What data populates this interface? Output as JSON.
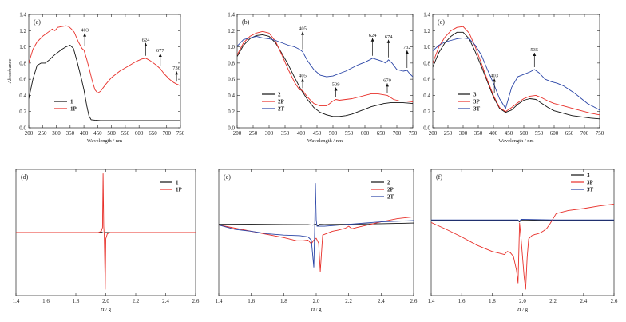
{
  "chart_data": [
    {
      "panel": "(a)",
      "type": "line",
      "xlabel": "Wavelength / nm",
      "ylabel": "Absorbance",
      "xlim": [
        200,
        750
      ],
      "ylim": [
        0.0,
        1.4
      ],
      "xticks": [
        200,
        250,
        300,
        350,
        400,
        450,
        500,
        550,
        600,
        650,
        700,
        750
      ],
      "yticks": [
        0.0,
        0.2,
        0.4,
        0.6,
        0.8,
        1.0,
        1.2,
        1.4
      ],
      "legend": "bottom-left",
      "series": [
        {
          "name": "1",
          "color": "#111111",
          "x": [
            200,
            215,
            230,
            245,
            260,
            275,
            290,
            305,
            320,
            335,
            350,
            362,
            375,
            390,
            400,
            410,
            418,
            426,
            440,
            460,
            500,
            550,
            600,
            650,
            700,
            750
          ],
          "y": [
            0.36,
            0.6,
            0.77,
            0.8,
            0.8,
            0.84,
            0.89,
            0.93,
            0.97,
            1.0,
            1.02,
            0.98,
            0.82,
            0.62,
            0.47,
            0.28,
            0.15,
            0.1,
            0.095,
            0.09,
            0.09,
            0.09,
            0.09,
            0.09,
            0.09,
            0.09
          ]
        },
        {
          "name": "1P",
          "color": "#e8302a",
          "x": [
            200,
            215,
            230,
            250,
            270,
            285,
            295,
            305,
            320,
            335,
            345,
            355,
            365,
            380,
            393,
            400,
            410,
            420,
            430,
            440,
            450,
            460,
            480,
            500,
            530,
            560,
            590,
            610,
            624,
            640,
            660,
            677,
            690,
            710,
            725,
            736,
            750
          ],
          "y": [
            0.8,
            0.97,
            1.06,
            1.13,
            1.18,
            1.22,
            1.2,
            1.24,
            1.25,
            1.26,
            1.25,
            1.22,
            1.18,
            1.06,
            0.98,
            0.96,
            0.85,
            0.72,
            0.58,
            0.47,
            0.43,
            0.45,
            0.54,
            0.62,
            0.7,
            0.76,
            0.82,
            0.85,
            0.86,
            0.83,
            0.78,
            0.73,
            0.67,
            0.6,
            0.56,
            0.54,
            0.52
          ]
        }
      ],
      "annotations": [
        {
          "label": "403",
          "x": 403,
          "y": 0.98,
          "series": "1P"
        },
        {
          "label": "624",
          "x": 624,
          "y": 0.86,
          "series": "1P"
        },
        {
          "label": "677",
          "x": 677,
          "y": 0.73,
          "series": "1P"
        },
        {
          "label": "736",
          "x": 736,
          "y": 0.54,
          "series": "1P"
        }
      ]
    },
    {
      "panel": "(b)",
      "type": "line",
      "xlabel": "Wavelength / nm",
      "ylabel": "",
      "xlim": [
        200,
        750
      ],
      "ylim": [
        0.0,
        1.4
      ],
      "xticks": [
        200,
        250,
        300,
        350,
        400,
        450,
        500,
        550,
        600,
        650,
        700,
        750
      ],
      "yticks": [
        0.0,
        0.2,
        0.4,
        0.6,
        0.8,
        1.0,
        1.2,
        1.4
      ],
      "legend": "bottom-left",
      "series": [
        {
          "name": "2",
          "color": "#111111",
          "x": [
            200,
            220,
            240,
            260,
            280,
            300,
            320,
            340,
            360,
            380,
            400,
            420,
            440,
            460,
            480,
            500,
            520,
            540,
            560,
            580,
            600,
            620,
            640,
            660,
            680,
            700,
            720,
            750
          ],
          "y": [
            0.88,
            1.02,
            1.1,
            1.14,
            1.15,
            1.13,
            1.05,
            0.92,
            0.78,
            0.62,
            0.47,
            0.35,
            0.25,
            0.19,
            0.16,
            0.14,
            0.14,
            0.15,
            0.17,
            0.2,
            0.23,
            0.26,
            0.28,
            0.3,
            0.31,
            0.31,
            0.31,
            0.3
          ]
        },
        {
          "name": "2P",
          "color": "#e8302a",
          "x": [
            200,
            220,
            240,
            260,
            280,
            300,
            320,
            340,
            360,
            380,
            395,
            405,
            420,
            440,
            460,
            480,
            500,
            509,
            520,
            540,
            560,
            580,
            600,
            620,
            640,
            655,
            670,
            690,
            710,
            730,
            750
          ],
          "y": [
            0.9,
            1.05,
            1.13,
            1.17,
            1.19,
            1.17,
            1.07,
            0.9,
            0.72,
            0.56,
            0.47,
            0.46,
            0.38,
            0.3,
            0.27,
            0.27,
            0.33,
            0.35,
            0.34,
            0.35,
            0.36,
            0.38,
            0.4,
            0.42,
            0.42,
            0.41,
            0.4,
            0.35,
            0.33,
            0.33,
            0.32
          ]
        },
        {
          "name": "2T",
          "color": "#2944a6",
          "x": [
            200,
            220,
            240,
            260,
            280,
            300,
            320,
            340,
            360,
            380,
            395,
            405,
            420,
            440,
            460,
            480,
            500,
            520,
            540,
            560,
            580,
            600,
            615,
            624,
            640,
            655,
            665,
            674,
            685,
            700,
            720,
            732,
            740,
            750
          ],
          "y": [
            1.01,
            1.09,
            1.11,
            1.13,
            1.11,
            1.1,
            1.08,
            1.05,
            1.02,
            1.0,
            0.97,
            0.94,
            0.83,
            0.72,
            0.65,
            0.63,
            0.64,
            0.67,
            0.7,
            0.74,
            0.78,
            0.81,
            0.84,
            0.86,
            0.84,
            0.82,
            0.8,
            0.84,
            0.8,
            0.72,
            0.7,
            0.71,
            0.67,
            0.63
          ]
        }
      ],
      "annotations": [
        {
          "label": "405",
          "x": 405,
          "y": 0.94,
          "series": "2T"
        },
        {
          "label": "624",
          "x": 624,
          "y": 0.86,
          "series": "2T"
        },
        {
          "label": "674",
          "x": 674,
          "y": 0.84,
          "series": "2T"
        },
        {
          "label": "732",
          "x": 732,
          "y": 0.71,
          "series": "2T"
        },
        {
          "label": "405",
          "x": 405,
          "y": 0.46,
          "series": "2P"
        },
        {
          "label": "509",
          "x": 509,
          "y": 0.35,
          "series": "2P"
        },
        {
          "label": "670",
          "x": 670,
          "y": 0.4,
          "series": "2P"
        }
      ]
    },
    {
      "panel": "(c)",
      "type": "line",
      "xlabel": "Wavelength / nm",
      "ylabel": "",
      "xlim": [
        200,
        750
      ],
      "ylim": [
        0.0,
        1.4
      ],
      "xticks": [
        200,
        250,
        300,
        350,
        400,
        450,
        500,
        550,
        600,
        650,
        700,
        750
      ],
      "yticks": [
        0.0,
        0.2,
        0.4,
        0.6,
        0.8,
        1.0,
        1.2,
        1.4
      ],
      "legend": "bottom-left",
      "series": [
        {
          "name": "3",
          "color": "#111111",
          "x": [
            200,
            220,
            240,
            260,
            280,
            300,
            320,
            340,
            360,
            380,
            400,
            420,
            440,
            460,
            480,
            500,
            520,
            540,
            560,
            580,
            600,
            620,
            640,
            660,
            680,
            700,
            720,
            750
          ],
          "y": [
            0.75,
            0.93,
            1.05,
            1.13,
            1.18,
            1.18,
            1.1,
            0.94,
            0.76,
            0.57,
            0.38,
            0.24,
            0.19,
            0.22,
            0.29,
            0.34,
            0.36,
            0.35,
            0.3,
            0.25,
            0.21,
            0.19,
            0.17,
            0.15,
            0.14,
            0.13,
            0.12,
            0.11
          ]
        },
        {
          "name": "3P",
          "color": "#e8302a",
          "x": [
            200,
            220,
            240,
            260,
            280,
            300,
            320,
            340,
            360,
            380,
            400,
            420,
            440,
            460,
            480,
            500,
            520,
            540,
            560,
            580,
            600,
            620,
            640,
            660,
            680,
            700,
            720,
            750
          ],
          "y": [
            0.8,
            1.0,
            1.12,
            1.2,
            1.24,
            1.25,
            1.17,
            1.0,
            0.8,
            0.59,
            0.4,
            0.25,
            0.2,
            0.25,
            0.31,
            0.36,
            0.39,
            0.4,
            0.37,
            0.33,
            0.3,
            0.28,
            0.26,
            0.24,
            0.22,
            0.2,
            0.18,
            0.16
          ]
        },
        {
          "name": "3T",
          "color": "#2944a6",
          "x": [
            200,
            220,
            240,
            260,
            280,
            300,
            320,
            340,
            360,
            380,
            400,
            420,
            440,
            460,
            480,
            500,
            520,
            535,
            550,
            570,
            590,
            610,
            630,
            650,
            670,
            690,
            710,
            730,
            750
          ],
          "y": [
            0.95,
            1.02,
            1.06,
            1.08,
            1.1,
            1.11,
            1.1,
            1.02,
            0.9,
            0.72,
            0.55,
            0.36,
            0.24,
            0.5,
            0.63,
            0.66,
            0.69,
            0.72,
            0.68,
            0.6,
            0.57,
            0.55,
            0.52,
            0.47,
            0.42,
            0.36,
            0.3,
            0.26,
            0.22
          ]
        }
      ],
      "annotations": [
        {
          "label": "535",
          "x": 535,
          "y": 0.72,
          "series": "3T"
        },
        {
          "label": "403",
          "x": 403,
          "y": 0.4,
          "series": "3P"
        }
      ]
    },
    {
      "panel": "(d)",
      "type": "line",
      "xlabel": "",
      "ylabel": "",
      "xlim": [
        1.4,
        2.6
      ],
      "ylim": [
        -1.0,
        1.0
      ],
      "xticks": [
        1.4,
        1.6,
        1.8,
        2.0,
        2.2,
        2.4,
        2.6
      ],
      "legend": "top-right",
      "series": [
        {
          "name": "1",
          "color": "#111111",
          "x": [
            1.4,
            1.95,
            1.97,
            1.985,
            2.0,
            2.6
          ],
          "y": [
            0,
            0,
            0.008,
            -0.008,
            0,
            0
          ]
        },
        {
          "name": "1P",
          "color": "#e8302a",
          "x": [
            1.4,
            1.95,
            1.97,
            1.978,
            1.982,
            1.986,
            1.99,
            1.996,
            2.0,
            2.01,
            2.03,
            2.6
          ],
          "y": [
            0,
            0,
            0.02,
            0.08,
            0.93,
            0.1,
            -0.05,
            -0.9,
            -0.1,
            -0.02,
            0,
            0
          ]
        }
      ]
    },
    {
      "panel": "(e)",
      "type": "line",
      "xlabel": "",
      "ylabel": "",
      "xlim": [
        1.4,
        2.6
      ],
      "ylim": [
        -1.0,
        1.0
      ],
      "xticks": [
        1.4,
        1.6,
        1.8,
        2.0,
        2.2,
        2.4,
        2.6
      ],
      "legend": "top-right",
      "series": [
        {
          "name": "2",
          "color": "#111111",
          "x": [
            1.4,
            1.6,
            1.8,
            1.95,
            1.98,
            1.995,
            2.01,
            2.02,
            2.05,
            2.2,
            2.4,
            2.6
          ],
          "y": [
            0.13,
            0.132,
            0.128,
            0.125,
            0.118,
            0.135,
            0.105,
            0.13,
            0.128,
            0.132,
            0.14,
            0.15
          ]
        },
        {
          "name": "2P",
          "color": "#e8302a",
          "x": [
            1.4,
            1.5,
            1.6,
            1.7,
            1.8,
            1.88,
            1.92,
            1.95,
            1.97,
            1.985,
            2.0,
            2.015,
            2.025,
            2.04,
            2.07,
            2.1,
            2.14,
            2.18,
            2.2,
            2.22,
            2.25,
            2.3,
            2.4,
            2.5,
            2.6
          ],
          "y": [
            0.12,
            0.07,
            0.02,
            -0.03,
            -0.08,
            -0.13,
            -0.13,
            -0.12,
            -0.18,
            -0.12,
            -0.09,
            -0.17,
            -0.62,
            -0.04,
            -0.01,
            0.02,
            0.04,
            0.07,
            0.1,
            0.06,
            0.08,
            0.11,
            0.17,
            0.22,
            0.25
          ]
        },
        {
          "name": "2T",
          "color": "#2944a6",
          "x": [
            1.4,
            1.5,
            1.6,
            1.7,
            1.8,
            1.9,
            1.95,
            1.97,
            1.985,
            1.99,
            1.995,
            2.0,
            2.005,
            2.01,
            2.05,
            2.1,
            2.2,
            2.3,
            2.4,
            2.5,
            2.6
          ],
          "y": [
            0.12,
            0.05,
            0.02,
            -0.02,
            -0.04,
            -0.05,
            -0.07,
            -0.12,
            -0.55,
            0.0,
            0.78,
            0.2,
            0.1,
            0.1,
            0.1,
            0.11,
            0.13,
            0.15,
            0.17,
            0.18,
            0.19
          ]
        }
      ]
    },
    {
      "panel": "(f)",
      "type": "line",
      "xlabel": "",
      "ylabel": "",
      "xlim": [
        1.4,
        2.6
      ],
      "ylim": [
        -1.0,
        1.0
      ],
      "xticks": [
        1.4,
        1.6,
        1.8,
        2.0,
        2.2,
        2.4,
        2.6
      ],
      "legend": "top-right",
      "series": [
        {
          "name": "3",
          "color": "#111111",
          "x": [
            1.4,
            1.8,
            1.97,
            1.98,
            1.99,
            2.2,
            2.6
          ],
          "y": [
            0.19,
            0.19,
            0.19,
            0.17,
            0.2,
            0.19,
            0.19
          ]
        },
        {
          "name": "3P",
          "color": "#e8302a",
          "x": [
            1.4,
            1.5,
            1.6,
            1.7,
            1.75,
            1.8,
            1.85,
            1.88,
            1.9,
            1.92,
            1.94,
            1.96,
            1.97,
            1.98,
            1.99,
            2.0,
            2.01,
            2.02,
            2.03,
            2.04,
            2.06,
            2.08,
            2.1,
            2.12,
            2.14,
            2.16,
            2.18,
            2.22,
            2.3,
            2.4,
            2.5,
            2.6
          ],
          "y": [
            0.16,
            0.05,
            -0.07,
            -0.2,
            -0.25,
            -0.3,
            -0.33,
            -0.35,
            -0.3,
            -0.32,
            -0.38,
            -0.6,
            -0.8,
            0.15,
            -0.1,
            -0.4,
            -0.7,
            -0.9,
            -0.4,
            -0.1,
            -0.05,
            -0.03,
            -0.02,
            0.0,
            0.03,
            0.07,
            0.14,
            0.3,
            0.35,
            0.38,
            0.42,
            0.45
          ]
        },
        {
          "name": "3T",
          "color": "#2944a6",
          "x": [
            1.4,
            1.8,
            1.97,
            1.98,
            1.99,
            2.2,
            2.6
          ],
          "y": [
            0.2,
            0.2,
            0.2,
            0.18,
            0.21,
            0.2,
            0.2
          ]
        }
      ]
    }
  ],
  "x_axis_titles": {
    "wavelength": {
      "pre": "Wavelength / nm"
    },
    "field": {
      "var": "H",
      "unit": " / g"
    }
  },
  "y_axis_title": "Absorbance"
}
